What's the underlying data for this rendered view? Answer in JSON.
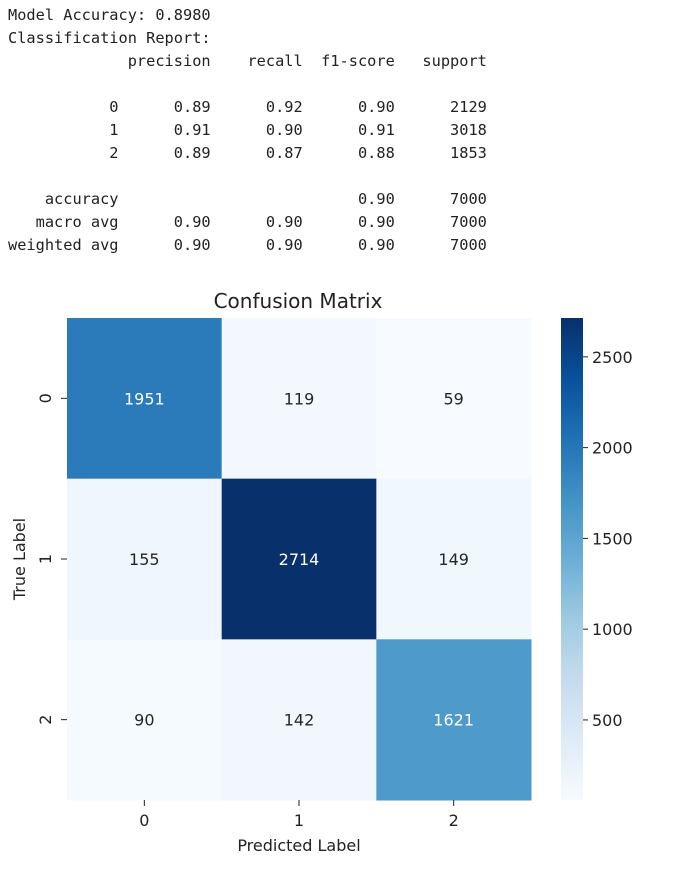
{
  "report": {
    "accuracy_line": "Model Accuracy: 0.8980",
    "heading": "Classification Report:",
    "columns": [
      "precision",
      "recall",
      "f1-score",
      "support"
    ],
    "class_rows": [
      {
        "label": "0",
        "precision": "0.89",
        "recall": "0.92",
        "f1": "0.90",
        "support": "2129"
      },
      {
        "label": "1",
        "precision": "0.91",
        "recall": "0.90",
        "f1": "0.91",
        "support": "3018"
      },
      {
        "label": "2",
        "precision": "0.89",
        "recall": "0.87",
        "f1": "0.88",
        "support": "1853"
      }
    ],
    "summary_rows": [
      {
        "label": "accuracy",
        "precision": "",
        "recall": "",
        "f1": "0.90",
        "support": "7000"
      },
      {
        "label": "macro avg",
        "precision": "0.90",
        "recall": "0.90",
        "f1": "0.90",
        "support": "7000"
      },
      {
        "label": "weighted avg",
        "precision": "0.90",
        "recall": "0.90",
        "f1": "0.90",
        "support": "7000"
      }
    ]
  },
  "chart_data": {
    "type": "heatmap",
    "title": "Confusion Matrix",
    "xlabel": "Predicted Label",
    "ylabel": "True Label",
    "x_categories": [
      "0",
      "1",
      "2"
    ],
    "y_categories": [
      "0",
      "1",
      "2"
    ],
    "matrix": [
      [
        1951,
        119,
        59
      ],
      [
        155,
        2714,
        149
      ],
      [
        90,
        142,
        1621
      ]
    ],
    "colormap": "Blues",
    "color_low": "#f7fbff",
    "color_high": "#08306b",
    "colorbar_range": [
      59,
      2714
    ],
    "colorbar_ticks": [
      500,
      1000,
      1500,
      2000,
      2500
    ]
  }
}
